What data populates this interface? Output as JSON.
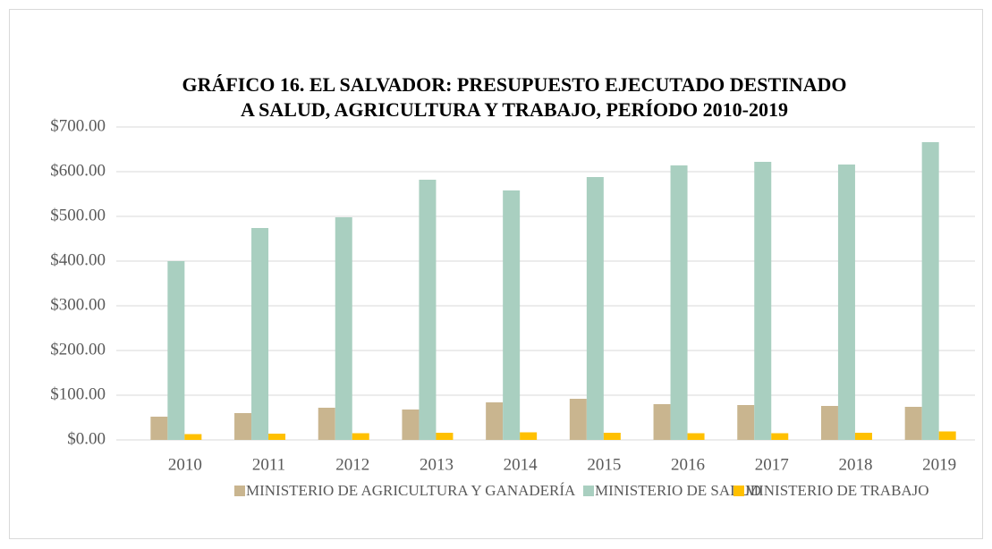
{
  "chart_data": {
    "type": "bar",
    "title": [
      "GRÁFICO 16. EL SALVADOR: PRESUPUESTO EJECUTADO DESTINADO",
      "A SALUD, AGRICULTURA Y TRABAJO, PERÍODO 2010-2019"
    ],
    "categories": [
      "2010",
      "2011",
      "2012",
      "2013",
      "2014",
      "2015",
      "2016",
      "2017",
      "2018",
      "2019"
    ],
    "series": [
      {
        "name": "MINISTERIO DE AGRICULTURA Y GANADERÍA",
        "color": "#c9b58f",
        "values": [
          52,
          60,
          72,
          68,
          84,
          92,
          80,
          78,
          76,
          74
        ]
      },
      {
        "name": "MINISTERIO DE SALUD",
        "color": "#a9cfc0",
        "values": [
          400,
          474,
          498,
          582,
          558,
          588,
          614,
          622,
          616,
          666
        ]
      },
      {
        "name": "MINISTERIO DE TRABAJO",
        "color": "#ffc000",
        "values": [
          13,
          14,
          15,
          16,
          17,
          16,
          15,
          15,
          16,
          19
        ]
      }
    ],
    "ylim": [
      0,
      700
    ],
    "yticks": [
      {
        "value": 0,
        "label": "$0.00"
      },
      {
        "value": 100,
        "label": "$100.00"
      },
      {
        "value": 200,
        "label": "$200.00"
      },
      {
        "value": 300,
        "label": "$300.00"
      },
      {
        "value": 400,
        "label": "$400.00"
      },
      {
        "value": 500,
        "label": "$500.00"
      },
      {
        "value": 600,
        "label": "$600.00"
      },
      {
        "value": 700,
        "label": "$700.00"
      }
    ],
    "grid": true,
    "legend": "bottom"
  }
}
